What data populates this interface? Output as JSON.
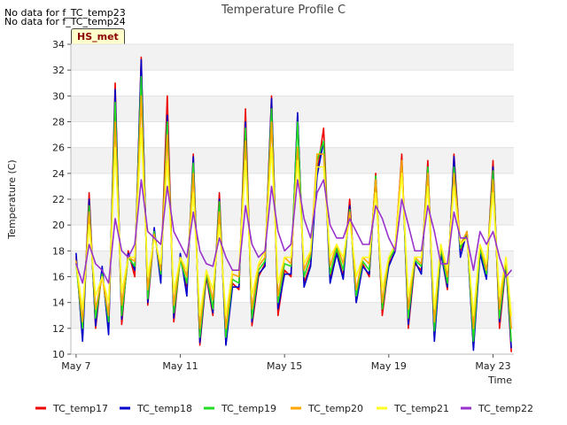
{
  "notes": [
    "No data for f_TC_temp23",
    "No data for f_TC_temp24"
  ],
  "tag": "HS_met",
  "chart_data": {
    "type": "line",
    "title": "Temperature Profile C",
    "xlabel": "Time",
    "ylabel": "Temperature (C)",
    "ylim": [
      10,
      34
    ],
    "yticks": [
      10,
      12,
      14,
      16,
      18,
      20,
      22,
      24,
      26,
      28,
      30,
      32,
      34
    ],
    "xlim": [
      6.8,
      23.8
    ],
    "xticks": [
      {
        "v": 7,
        "label": "May 7"
      },
      {
        "v": 11,
        "label": "May 11"
      },
      {
        "v": 15,
        "label": "May 15"
      },
      {
        "v": 19,
        "label": "May 19"
      },
      {
        "v": 23,
        "label": "May 23"
      }
    ],
    "grid": "horizontal bands",
    "legend_position": "bottom",
    "colors": {
      "TC_temp17": "#ee0000",
      "TC_temp18": "#0000cc",
      "TC_temp19": "#22dd22",
      "TC_temp20": "#ffa500",
      "TC_temp21": "#ffff22",
      "TC_temp22": "#9932cc"
    },
    "x": [
      7.0,
      7.25,
      7.5,
      7.75,
      8.0,
      8.25,
      8.5,
      8.75,
      9.0,
      9.25,
      9.5,
      9.75,
      10.0,
      10.25,
      10.5,
      10.75,
      11.0,
      11.25,
      11.5,
      11.75,
      12.0,
      12.25,
      12.5,
      12.75,
      13.0,
      13.25,
      13.5,
      13.75,
      14.0,
      14.25,
      14.5,
      14.75,
      15.0,
      15.25,
      15.5,
      15.75,
      16.0,
      16.25,
      16.5,
      16.75,
      17.0,
      17.25,
      17.5,
      17.75,
      18.0,
      18.25,
      18.5,
      18.75,
      19.0,
      19.25,
      19.5,
      19.75,
      20.0,
      20.25,
      20.5,
      20.75,
      21.0,
      21.25,
      21.5,
      21.75,
      22.0,
      22.25,
      22.5,
      22.75,
      23.0,
      23.25,
      23.5,
      23.7
    ],
    "series": [
      {
        "name": "TC_temp17",
        "values": [
          17.5,
          11.2,
          22.5,
          12.0,
          16.5,
          11.8,
          31.0,
          12.3,
          18.0,
          16.0,
          33.0,
          13.8,
          19.5,
          16.0,
          30.0,
          12.5,
          17.5,
          15.0,
          25.5,
          10.7,
          16.0,
          13.0,
          22.5,
          10.8,
          15.5,
          15.0,
          29.0,
          12.2,
          16.0,
          17.0,
          30.0,
          13.0,
          16.5,
          16.0,
          28.5,
          15.5,
          17.0,
          24.0,
          27.5,
          15.8,
          18.0,
          16.0,
          22.0,
          14.0,
          17.0,
          16.0,
          24.0,
          13.0,
          17.0,
          18.0,
          25.5,
          12.0,
          17.0,
          16.5,
          25.0,
          11.2,
          18.0,
          15.0,
          25.5,
          18.0,
          19.5,
          10.5,
          18.0,
          16.0,
          25.0,
          12.0,
          17.0,
          10.2
        ]
      },
      {
        "name": "TC_temp18",
        "values": [
          17.8,
          11.0,
          22.0,
          12.2,
          16.8,
          11.5,
          30.5,
          12.7,
          17.8,
          16.5,
          32.8,
          14.0,
          19.8,
          15.5,
          28.5,
          12.8,
          17.8,
          14.5,
          25.3,
          10.9,
          16.2,
          13.2,
          22.0,
          10.7,
          15.2,
          15.2,
          28.0,
          12.5,
          16.2,
          16.8,
          29.8,
          13.5,
          16.2,
          16.2,
          28.7,
          15.2,
          16.8,
          23.8,
          26.5,
          15.5,
          17.8,
          15.8,
          21.5,
          14.0,
          16.8,
          16.2,
          23.5,
          13.5,
          16.8,
          18.0,
          25.0,
          12.3,
          17.2,
          16.2,
          24.5,
          11.0,
          17.8,
          15.2,
          25.3,
          17.5,
          19.5,
          10.3,
          17.8,
          15.8,
          24.5,
          12.5,
          17.0,
          10.5
        ]
      },
      {
        "name": "TC_temp19",
        "values": [
          17.0,
          12.0,
          21.5,
          12.8,
          16.2,
          12.5,
          29.5,
          13.0,
          17.5,
          16.8,
          31.5,
          14.3,
          19.5,
          16.2,
          28.0,
          13.2,
          17.3,
          15.5,
          24.8,
          11.3,
          16.3,
          13.5,
          21.8,
          11.3,
          15.8,
          15.5,
          27.5,
          12.8,
          16.5,
          17.2,
          29.0,
          14.0,
          17.0,
          16.8,
          28.0,
          16.0,
          17.5,
          25.0,
          26.5,
          16.2,
          18.2,
          16.5,
          21.2,
          14.5,
          17.2,
          16.5,
          23.8,
          13.5,
          17.3,
          18.2,
          25.0,
          12.8,
          17.3,
          16.8,
          24.5,
          11.8,
          18.2,
          15.5,
          24.5,
          18.2,
          19.5,
          11.0,
          18.2,
          16.2,
          24.2,
          12.8,
          17.2,
          11.0
        ]
      },
      {
        "name": "TC_temp20",
        "values": [
          17.2,
          12.5,
          21.0,
          13.5,
          16.0,
          13.0,
          28.0,
          13.8,
          17.5,
          17.2,
          30.0,
          15.0,
          19.3,
          16.5,
          27.0,
          13.8,
          17.5,
          16.0,
          24.0,
          12.0,
          16.5,
          14.2,
          21.0,
          12.0,
          16.2,
          16.0,
          26.5,
          13.5,
          16.8,
          17.5,
          28.0,
          14.5,
          17.5,
          17.0,
          26.0,
          16.5,
          17.8,
          25.5,
          25.5,
          16.8,
          18.5,
          17.0,
          21.0,
          15.0,
          17.5,
          17.0,
          23.5,
          14.0,
          17.5,
          18.5,
          25.0,
          13.5,
          17.5,
          17.0,
          24.0,
          12.5,
          18.5,
          16.0,
          24.0,
          18.5,
          19.5,
          12.0,
          18.5,
          16.5,
          23.5,
          13.5,
          17.5,
          12.0
        ]
      },
      {
        "name": "TC_temp21",
        "values": [
          17.0,
          13.5,
          20.0,
          14.5,
          16.0,
          14.0,
          26.0,
          14.8,
          17.5,
          17.5,
          27.5,
          16.0,
          19.0,
          17.0,
          25.0,
          14.8,
          17.5,
          16.5,
          22.5,
          13.0,
          16.5,
          15.0,
          20.0,
          13.0,
          16.5,
          16.5,
          25.0,
          14.5,
          17.0,
          18.0,
          26.0,
          15.5,
          17.5,
          17.5,
          25.0,
          17.0,
          18.0,
          24.5,
          24.5,
          17.5,
          18.5,
          17.5,
          20.5,
          16.0,
          17.5,
          17.5,
          22.5,
          15.0,
          17.5,
          18.5,
          24.0,
          14.5,
          17.5,
          17.5,
          23.0,
          13.5,
          18.5,
          16.5,
          23.0,
          18.5,
          19.0,
          13.0,
          18.5,
          17.0,
          22.5,
          14.5,
          17.5,
          13.0
        ]
      },
      {
        "name": "TC_temp22",
        "values": [
          17.0,
          15.5,
          18.5,
          17.0,
          16.5,
          15.5,
          20.5,
          18.0,
          17.5,
          18.5,
          23.5,
          19.5,
          19.0,
          18.5,
          23.0,
          19.5,
          18.5,
          17.5,
          21.0,
          18.0,
          17.0,
          16.8,
          19.0,
          17.5,
          16.5,
          16.5,
          21.5,
          18.5,
          17.5,
          18.0,
          23.0,
          19.5,
          18.0,
          18.5,
          23.5,
          20.5,
          19.0,
          22.5,
          23.5,
          20.0,
          19.0,
          19.0,
          20.5,
          19.5,
          18.5,
          18.5,
          21.5,
          20.5,
          19.0,
          18.0,
          22.0,
          20.0,
          18.0,
          18.0,
          21.5,
          19.5,
          17.0,
          17.0,
          21.0,
          19.0,
          19.0,
          16.5,
          19.5,
          18.5,
          19.5,
          17.5,
          16.0,
          16.5
        ]
      }
    ]
  }
}
